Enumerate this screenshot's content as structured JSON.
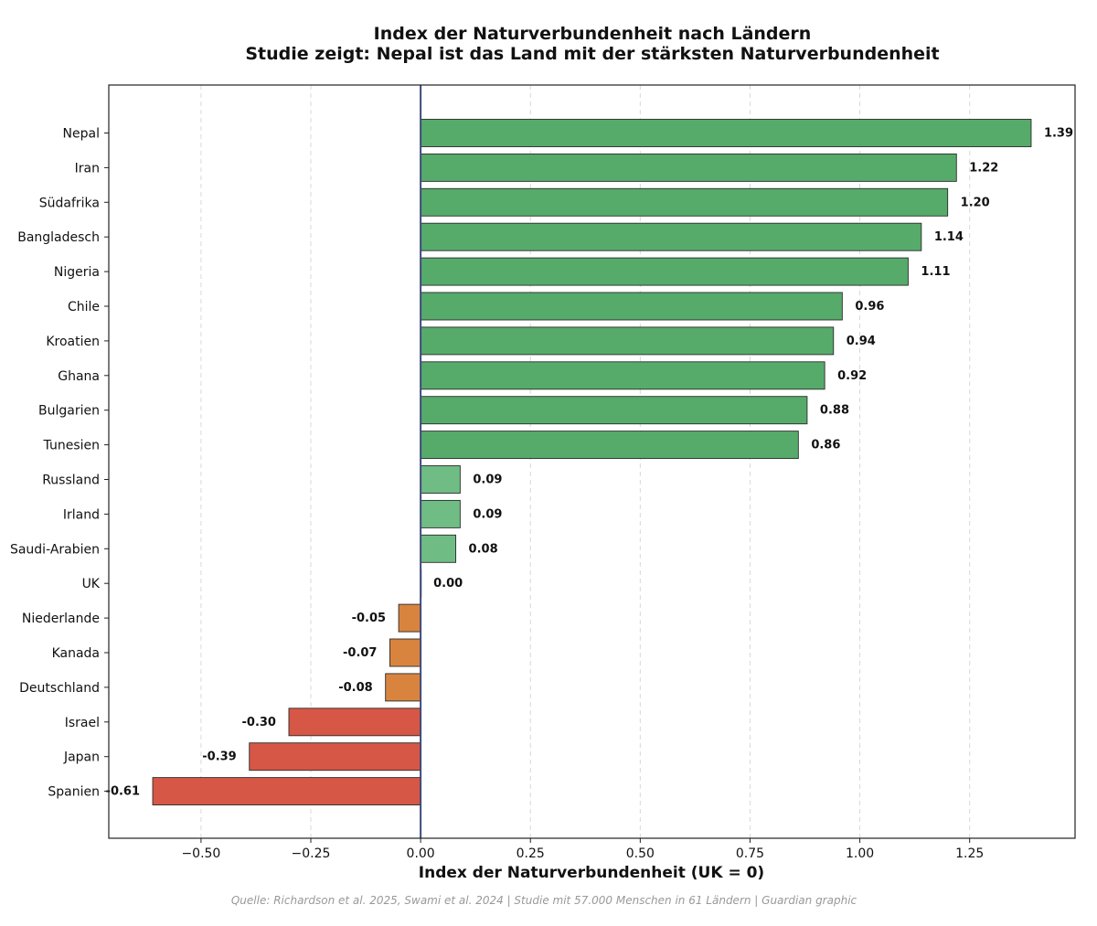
{
  "chart_data": {
    "type": "bar",
    "orientation": "horizontal",
    "title": "Index der Naturverbundenheit nach Ländern",
    "subtitle": "Studie zeigt: Nepal ist das Land mit der stärksten Naturverbundenheit",
    "xlabel": "Index der Naturverbundenheit (UK = 0)",
    "ylabel": "",
    "xlim": [
      -0.71,
      1.49
    ],
    "xticks": [
      -0.5,
      -0.25,
      0.0,
      0.25,
      0.5,
      0.75,
      1.0,
      1.25
    ],
    "xtick_labels": [
      "−0.50",
      "−0.25",
      "0.00",
      "0.25",
      "0.50",
      "0.75",
      "1.00",
      "1.25"
    ],
    "grid": "vertical dashed",
    "categories": [
      "Nepal",
      "Iran",
      "Südafrika",
      "Bangladesch",
      "Nigeria",
      "Chile",
      "Kroatien",
      "Ghana",
      "Bulgarien",
      "Tunesien",
      "Russland",
      "Irland",
      "Saudi-Arabien",
      "UK",
      "Niederlande",
      "Kanada",
      "Deutschland",
      "Israel",
      "Japan",
      "Spanien"
    ],
    "values": [
      1.39,
      1.22,
      1.2,
      1.14,
      1.11,
      0.96,
      0.94,
      0.92,
      0.88,
      0.86,
      0.09,
      0.09,
      0.08,
      0.0,
      -0.05,
      -0.07,
      -0.08,
      -0.3,
      -0.39,
      -0.61
    ],
    "value_labels": [
      "1.39",
      "1.22",
      "1.20",
      "1.14",
      "1.11",
      "0.96",
      "0.94",
      "0.92",
      "0.88",
      "0.86",
      "0.09",
      "0.09",
      "0.08",
      "0.00",
      "-0.05",
      "-0.07",
      "-0.08",
      "-0.30",
      "-0.39",
      "-0.61"
    ]
  },
  "colors": {
    "strong_positive": "#56ab6a",
    "weak_positive": "#6fbd84",
    "slight_negative": "#d8843e",
    "negative": "#d65746",
    "zero_line": "#3f4a7c",
    "grid": "#d8d8d8"
  },
  "caption": "Quelle: Richardson et al. 2025, Swami et al. 2024 | Studie mit 57.000 Menschen in 61 Ländern | Guardian graphic"
}
